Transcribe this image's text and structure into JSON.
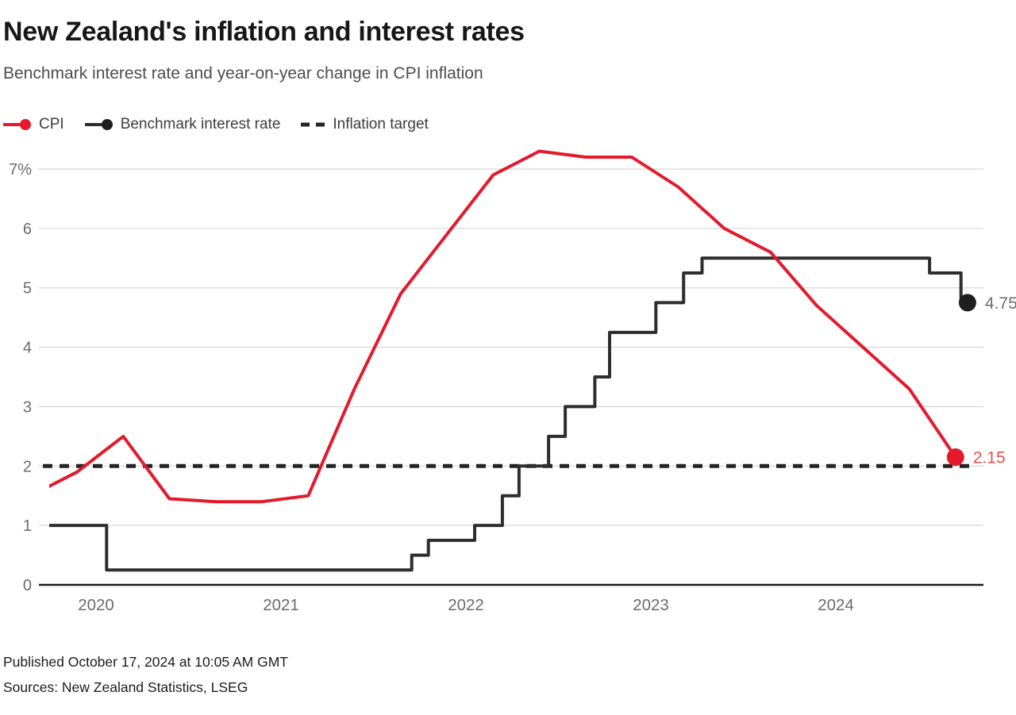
{
  "header": {
    "title": "New Zealand's inflation and interest rates",
    "subtitle": "Benchmark interest rate and year-on-year change in CPI inflation"
  },
  "legend": {
    "cpi_label": "CPI",
    "benchmark_label": "Benchmark interest rate",
    "target_label": "Inflation target"
  },
  "footer": {
    "published": "Published October 17, 2024 at 10:05 AM GMT",
    "sources": "Sources: New Zealand Statistics, LSEG"
  },
  "colors": {
    "cpi_line": "#E4192C",
    "cpi_end_label": "#E0554E",
    "benchmark_line": "#2E2E2E",
    "benchmark_dot": "#1F1F1F",
    "benchmark_end_label": "#6E6E6E",
    "target_dash": "#242424",
    "gridline": "#D8D8D8",
    "axis_line": "#1A1A1A",
    "tick_label": "#6B6B6B"
  },
  "chart_data": {
    "type": "line",
    "title": "New Zealand's inflation and interest rates",
    "subtitle": "Benchmark interest rate and year-on-year change in CPI inflation",
    "grid": "horizontal",
    "x_axis": {
      "unit": "year-decimal",
      "tick_labels": [
        "2020",
        "2021",
        "2022",
        "2023",
        "2024"
      ],
      "range": [
        2019.85,
        2024.95
      ]
    },
    "y_axis": {
      "unit": "percent",
      "ticks": [
        0,
        1,
        2,
        3,
        4,
        5,
        6,
        7
      ],
      "tick_labels": [
        "0",
        "1",
        "2",
        "3",
        "4",
        "5",
        "6",
        "7%"
      ],
      "range": [
        0,
        7.5
      ]
    },
    "series": [
      {
        "name": "CPI",
        "type": "line",
        "quarters": [
          "2019 Q3",
          "2019 Q4",
          "2020 Q1",
          "2020 Q2",
          "2020 Q3",
          "2020 Q4",
          "2021 Q1",
          "2021 Q2",
          "2021 Q3",
          "2021 Q4",
          "2022 Q1",
          "2022 Q2",
          "2022 Q3",
          "2022 Q4",
          "2023 Q1",
          "2023 Q2",
          "2023 Q3",
          "2023 Q4",
          "2024 Q1",
          "2024 Q2",
          "2024 Q3"
        ],
        "x": [
          2019.75,
          2020.0,
          2020.25,
          2020.5,
          2020.75,
          2021.0,
          2021.25,
          2021.5,
          2021.75,
          2022.0,
          2022.25,
          2022.5,
          2022.75,
          2023.0,
          2023.25,
          2023.5,
          2023.75,
          2024.0,
          2024.25,
          2024.5,
          2024.75
        ],
        "values": [
          1.5,
          1.9,
          2.5,
          1.45,
          1.4,
          1.4,
          1.5,
          3.3,
          4.9,
          5.9,
          6.9,
          7.3,
          7.2,
          7.2,
          6.7,
          6.0,
          5.6,
          4.7,
          4.0,
          3.3,
          2.15
        ],
        "end_label": "2.15"
      },
      {
        "name": "Benchmark interest rate",
        "type": "step",
        "start": {
          "x": 2019.78,
          "value": 1.0
        },
        "steps": [
          {
            "x": 2020.16,
            "value": 0.25
          },
          {
            "x": 2021.81,
            "value": 0.5
          },
          {
            "x": 2021.9,
            "value": 0.75
          },
          {
            "x": 2022.15,
            "value": 1.0
          },
          {
            "x": 2022.3,
            "value": 1.5
          },
          {
            "x": 2022.39,
            "value": 2.0
          },
          {
            "x": 2022.55,
            "value": 2.5
          },
          {
            "x": 2022.64,
            "value": 3.0
          },
          {
            "x": 2022.8,
            "value": 3.5
          },
          {
            "x": 2022.88,
            "value": 4.25
          },
          {
            "x": 2023.13,
            "value": 4.75
          },
          {
            "x": 2023.28,
            "value": 5.25
          },
          {
            "x": 2023.38,
            "value": 5.5
          },
          {
            "x": 2024.61,
            "value": 5.25
          },
          {
            "x": 2024.78,
            "value": 4.75
          }
        ],
        "end_x": 2024.815,
        "end_label": "4.75"
      },
      {
        "name": "Inflation target",
        "type": "dashed-constant",
        "value": 2
      }
    ]
  }
}
